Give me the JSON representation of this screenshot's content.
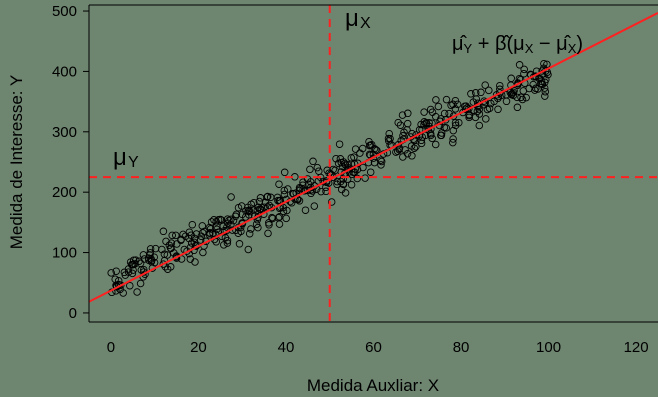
{
  "colors": {
    "background": "#6e8570",
    "points": "#000000",
    "regression": "#ff2020",
    "reference": "#ff2020"
  },
  "chart_data": {
    "type": "scatter",
    "title": "",
    "xlabel": "Medida Auxliar: X",
    "ylabel": "Medida de Interesse: Y",
    "xlim": [
      -5,
      125
    ],
    "ylim": [
      -15,
      510
    ],
    "xticks": [
      0,
      20,
      40,
      60,
      80,
      100,
      120
    ],
    "yticks": [
      0,
      100,
      200,
      300,
      400,
      500
    ],
    "grid": false,
    "legend": "none",
    "sample_size_approx": 500,
    "point_generation": {
      "x_range": [
        0,
        100
      ],
      "y_intercept": 50,
      "y_slope": 3.5,
      "y_noise_sd": 17
    },
    "regression_line": {
      "intercept": 37,
      "slope": 3.68,
      "x_from": -5,
      "x_to": 125
    },
    "mu_x": 50,
    "mu_y": 225,
    "annotations": {
      "mu_x_label": "μX",
      "mu_y_label": "μY",
      "estimator_label": "μ̂Y + β̂(μX − μ̂X)"
    }
  }
}
